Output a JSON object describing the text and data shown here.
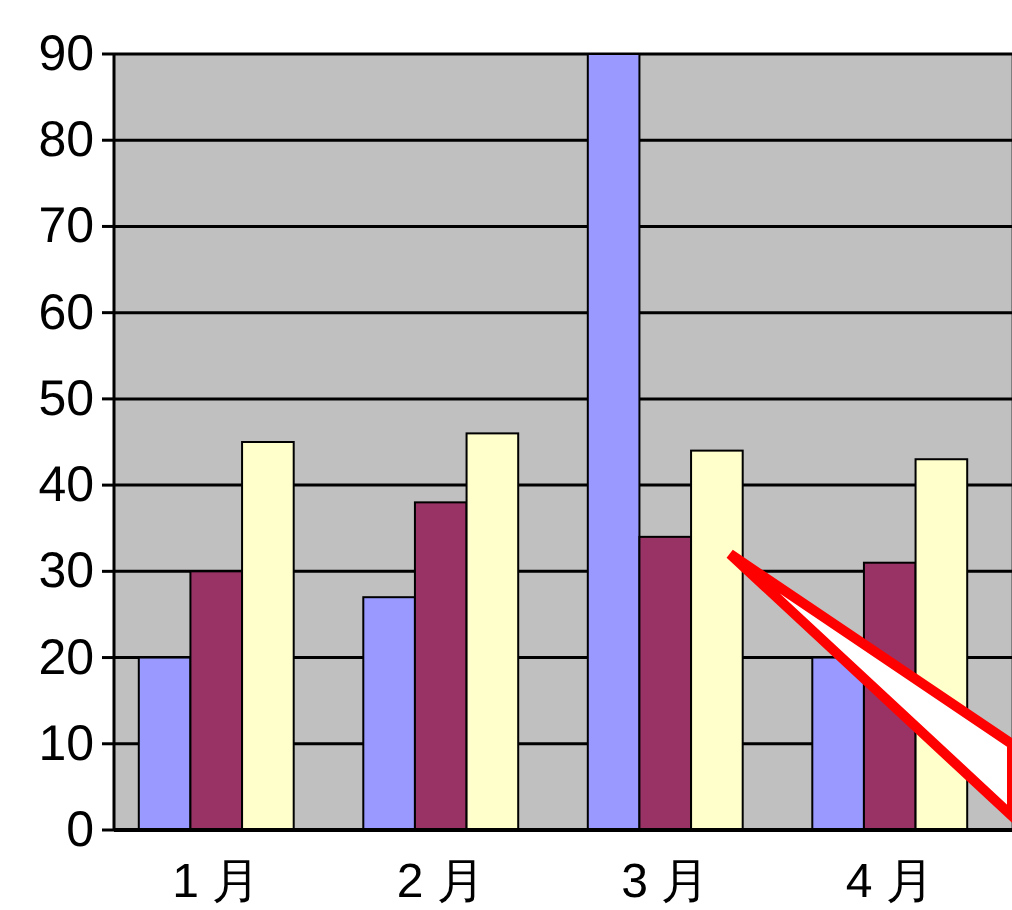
{
  "chart_data": {
    "type": "bar",
    "categories": [
      "1 月",
      "2 月",
      "3 月",
      "4 月"
    ],
    "series": [
      {
        "color": "#9999ff",
        "values": [
          20,
          27,
          90,
          20
        ]
      },
      {
        "color": "#993366",
        "values": [
          30,
          38,
          34,
          31
        ]
      },
      {
        "color": "#ffffcc",
        "values": [
          45,
          46,
          44,
          43
        ]
      }
    ],
    "ylim": [
      0,
      90
    ],
    "yticks": [
      0,
      10,
      20,
      30,
      40,
      50,
      60,
      70,
      80,
      90
    ],
    "grid": "y"
  }
}
